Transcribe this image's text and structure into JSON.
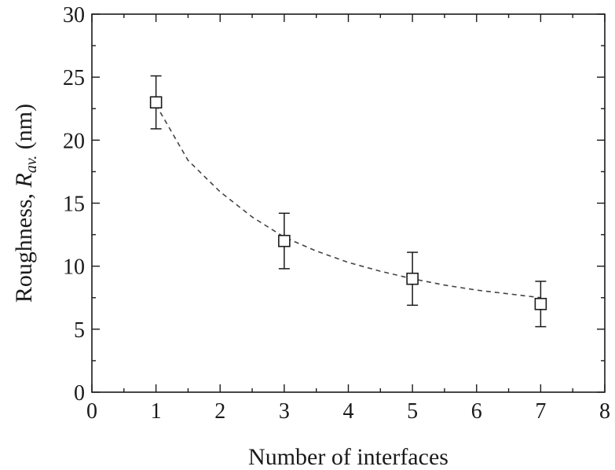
{
  "chart_data": {
    "type": "scatter",
    "title": "",
    "xlabel": "Number of interfaces",
    "ylabel": {
      "prefix": "Roughness, ",
      "symbol": "R",
      "subscript": "av.",
      "unit": " (nm)"
    },
    "xlim": [
      0,
      8
    ],
    "ylim": [
      0,
      30
    ],
    "xticks": [
      "0",
      "1",
      "2",
      "3",
      "4",
      "5",
      "6",
      "7",
      "8"
    ],
    "yticks": [
      "0",
      "5",
      "10",
      "15",
      "20",
      "25",
      "30"
    ],
    "x_minor_step": 0.5,
    "y_minor_step": 2.5,
    "grid": false,
    "legend": "none",
    "series": [
      {
        "marker": "open-square",
        "x": [
          1,
          3,
          5,
          7
        ],
        "y": [
          23,
          12,
          9,
          7
        ],
        "yerr": [
          2.1,
          2.2,
          2.1,
          1.8
        ]
      }
    ],
    "fit_curve": {
      "style": "dashed",
      "x": [
        1,
        1.5,
        2,
        2.5,
        3,
        3.5,
        4,
        4.5,
        5,
        5.5,
        6,
        6.5,
        7
      ],
      "y": [
        22.8,
        18.4,
        15.9,
        13.9,
        12.3,
        11.2,
        10.3,
        9.6,
        9.0,
        8.5,
        8.1,
        7.8,
        7.5
      ]
    },
    "colors": {
      "ink": "#1a1a1a",
      "fit": "#444444",
      "background": "#ffffff"
    }
  }
}
